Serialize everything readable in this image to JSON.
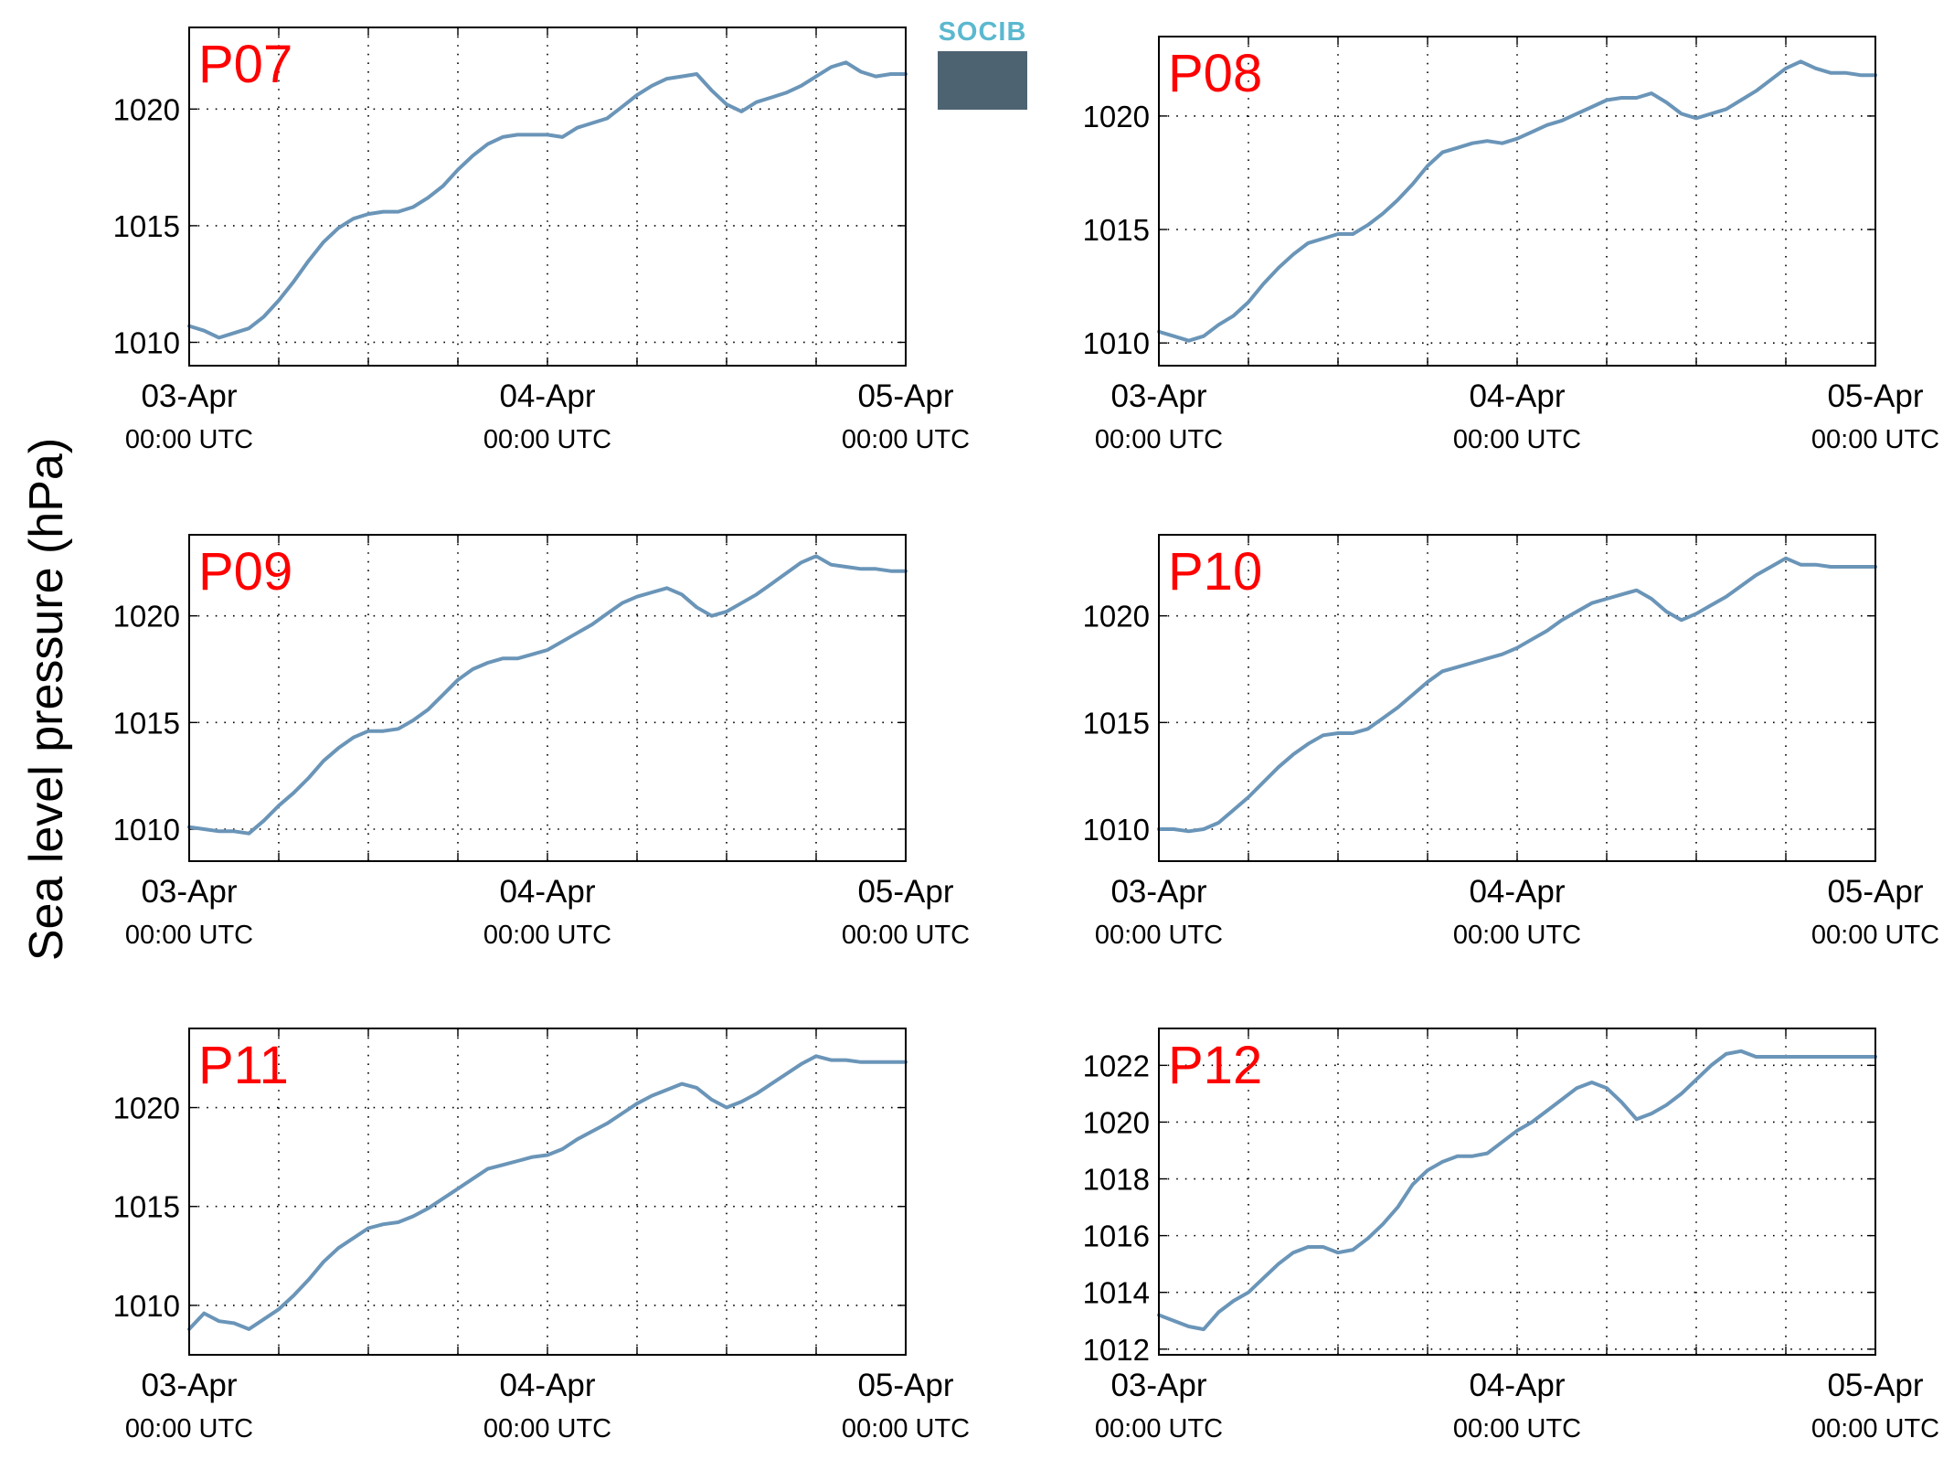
{
  "figure": {
    "ylabel": "Sea level pressure (hPa)",
    "logo_text": "SOCIB"
  },
  "chart_data": [
    {
      "type": "line",
      "title": "P07",
      "ylabel": "",
      "x_tick_dates": [
        "03-Apr",
        "04-Apr",
        "05-Apr"
      ],
      "x_tick_times": [
        "00:00 UTC",
        "00:00 UTC",
        "00:00 UTC"
      ],
      "xlim": [
        "2000-04-03T00:00",
        "2000-04-05T00:00"
      ],
      "yticks": [
        1010,
        1015,
        1020
      ],
      "ylim": [
        1009.0,
        1023.5
      ],
      "grid": true,
      "color": "#6a95b8",
      "series": [
        {
          "x": [
            "2000-04-03T00:00",
            "2000-04-03T01:00",
            "2000-04-03T02:00",
            "2000-04-03T03:00",
            "2000-04-03T04:00",
            "2000-04-03T05:00",
            "2000-04-03T06:00",
            "2000-04-03T07:00",
            "2000-04-03T08:00",
            "2000-04-03T09:00",
            "2000-04-03T10:00",
            "2000-04-03T11:00",
            "2000-04-03T12:00",
            "2000-04-03T13:00",
            "2000-04-03T14:00",
            "2000-04-03T15:00",
            "2000-04-03T16:00",
            "2000-04-03T17:00",
            "2000-04-03T18:00",
            "2000-04-03T19:00",
            "2000-04-03T20:00",
            "2000-04-03T21:00",
            "2000-04-03T22:00",
            "2000-04-03T23:00",
            "2000-04-04T00:00",
            "2000-04-04T01:00",
            "2000-04-04T02:00",
            "2000-04-04T03:00",
            "2000-04-04T04:00",
            "2000-04-04T05:00",
            "2000-04-04T06:00",
            "2000-04-04T07:00",
            "2000-04-04T08:00",
            "2000-04-04T09:00",
            "2000-04-04T10:00",
            "2000-04-04T11:00",
            "2000-04-04T12:00",
            "2000-04-04T13:00",
            "2000-04-04T14:00",
            "2000-04-04T15:00",
            "2000-04-04T16:00",
            "2000-04-04T17:00",
            "2000-04-04T18:00",
            "2000-04-04T19:00",
            "2000-04-04T20:00",
            "2000-04-04T21:00",
            "2000-04-04T22:00",
            "2000-04-04T23:00",
            "2000-04-05T00:00"
          ],
          "values": [
            1010.7,
            1010.5,
            1010.2,
            1010.4,
            1010.6,
            1011.1,
            1011.8,
            1012.6,
            1013.5,
            1014.3,
            1014.9,
            1015.3,
            1015.5,
            1015.6,
            1015.6,
            1015.8,
            1016.2,
            1016.7,
            1017.4,
            1018.0,
            1018.5,
            1018.8,
            1018.9,
            1018.9,
            1018.9,
            1018.8,
            1019.2,
            1019.4,
            1019.6,
            1020.1,
            1020.6,
            1021.0,
            1021.3,
            1021.4,
            1021.5,
            1020.8,
            1020.2,
            1019.9,
            1020.3,
            1020.5,
            1020.7,
            1021.0,
            1021.4,
            1021.8,
            1022.0,
            1021.6,
            1021.4,
            1021.5,
            1021.5
          ]
        }
      ]
    },
    {
      "type": "line",
      "title": "P08",
      "ylabel": "",
      "x_tick_dates": [
        "03-Apr",
        "04-Apr",
        "05-Apr"
      ],
      "x_tick_times": [
        "00:00 UTC",
        "00:00 UTC",
        "00:00 UTC"
      ],
      "xlim": [
        "2000-04-03T00:00",
        "2000-04-05T00:00"
      ],
      "yticks": [
        1010,
        1015,
        1020
      ],
      "ylim": [
        1009.0,
        1023.5
      ],
      "grid": true,
      "color": "#6a95b8",
      "series": [
        {
          "x": [
            "2000-04-03T00:00",
            "2000-04-03T01:00",
            "2000-04-03T02:00",
            "2000-04-03T03:00",
            "2000-04-03T04:00",
            "2000-04-03T05:00",
            "2000-04-03T06:00",
            "2000-04-03T07:00",
            "2000-04-03T08:00",
            "2000-04-03T09:00",
            "2000-04-03T10:00",
            "2000-04-03T11:00",
            "2000-04-03T12:00",
            "2000-04-03T13:00",
            "2000-04-03T14:00",
            "2000-04-03T15:00",
            "2000-04-03T16:00",
            "2000-04-03T17:00",
            "2000-04-03T18:00",
            "2000-04-03T19:00",
            "2000-04-03T20:00",
            "2000-04-03T21:00",
            "2000-04-03T22:00",
            "2000-04-03T23:00",
            "2000-04-04T00:00",
            "2000-04-04T01:00",
            "2000-04-04T02:00",
            "2000-04-04T03:00",
            "2000-04-04T04:00",
            "2000-04-04T05:00",
            "2000-04-04T06:00",
            "2000-04-04T07:00",
            "2000-04-04T08:00",
            "2000-04-04T09:00",
            "2000-04-04T10:00",
            "2000-04-04T11:00",
            "2000-04-04T12:00",
            "2000-04-04T13:00",
            "2000-04-04T14:00",
            "2000-04-04T15:00",
            "2000-04-04T16:00",
            "2000-04-04T17:00",
            "2000-04-04T18:00",
            "2000-04-04T19:00",
            "2000-04-04T20:00",
            "2000-04-04T21:00",
            "2000-04-04T22:00",
            "2000-04-04T23:00",
            "2000-04-05T00:00"
          ],
          "values": [
            1010.5,
            1010.3,
            1010.1,
            1010.3,
            1010.8,
            1011.2,
            1011.8,
            1012.6,
            1013.3,
            1013.9,
            1014.4,
            1014.6,
            1014.8,
            1014.8,
            1015.2,
            1015.7,
            1016.3,
            1017.0,
            1017.8,
            1018.4,
            1018.6,
            1018.8,
            1018.9,
            1018.8,
            1019.0,
            1019.3,
            1019.6,
            1019.8,
            1020.1,
            1020.4,
            1020.7,
            1020.8,
            1020.8,
            1021.0,
            1020.6,
            1020.1,
            1019.9,
            1020.1,
            1020.3,
            1020.7,
            1021.1,
            1021.6,
            1022.1,
            1022.4,
            1022.1,
            1021.9,
            1021.9,
            1021.8,
            1021.8
          ]
        }
      ]
    },
    {
      "type": "line",
      "title": "P09",
      "ylabel": "",
      "x_tick_dates": [
        "03-Apr",
        "04-Apr",
        "05-Apr"
      ],
      "x_tick_times": [
        "00:00 UTC",
        "00:00 UTC",
        "00:00 UTC"
      ],
      "xlim": [
        "2000-04-03T00:00",
        "2000-04-05T00:00"
      ],
      "yticks": [
        1010,
        1015,
        1020
      ],
      "ylim": [
        1008.5,
        1023.8
      ],
      "grid": true,
      "color": "#6a95b8",
      "series": [
        {
          "x": [
            "2000-04-03T00:00",
            "2000-04-03T01:00",
            "2000-04-03T02:00",
            "2000-04-03T03:00",
            "2000-04-03T04:00",
            "2000-04-03T05:00",
            "2000-04-03T06:00",
            "2000-04-03T07:00",
            "2000-04-03T08:00",
            "2000-04-03T09:00",
            "2000-04-03T10:00",
            "2000-04-03T11:00",
            "2000-04-03T12:00",
            "2000-04-03T13:00",
            "2000-04-03T14:00",
            "2000-04-03T15:00",
            "2000-04-03T16:00",
            "2000-04-03T17:00",
            "2000-04-03T18:00",
            "2000-04-03T19:00",
            "2000-04-03T20:00",
            "2000-04-03T21:00",
            "2000-04-03T22:00",
            "2000-04-03T23:00",
            "2000-04-04T00:00",
            "2000-04-04T01:00",
            "2000-04-04T02:00",
            "2000-04-04T03:00",
            "2000-04-04T04:00",
            "2000-04-04T05:00",
            "2000-04-04T06:00",
            "2000-04-04T07:00",
            "2000-04-04T08:00",
            "2000-04-04T09:00",
            "2000-04-04T10:00",
            "2000-04-04T11:00",
            "2000-04-04T12:00",
            "2000-04-04T13:00",
            "2000-04-04T14:00",
            "2000-04-04T15:00",
            "2000-04-04T16:00",
            "2000-04-04T17:00",
            "2000-04-04T18:00",
            "2000-04-04T19:00",
            "2000-04-04T20:00",
            "2000-04-04T21:00",
            "2000-04-04T22:00",
            "2000-04-04T23:00",
            "2000-04-05T00:00"
          ],
          "values": [
            1010.1,
            1010.0,
            1009.9,
            1009.9,
            1009.8,
            1010.4,
            1011.1,
            1011.7,
            1012.4,
            1013.2,
            1013.8,
            1014.3,
            1014.6,
            1014.6,
            1014.7,
            1015.1,
            1015.6,
            1016.3,
            1017.0,
            1017.5,
            1017.8,
            1018.0,
            1018.0,
            1018.2,
            1018.4,
            1018.8,
            1019.2,
            1019.6,
            1020.1,
            1020.6,
            1020.9,
            1021.1,
            1021.3,
            1021.0,
            1020.4,
            1020.0,
            1020.2,
            1020.6,
            1021.0,
            1021.5,
            1022.0,
            1022.5,
            1022.8,
            1022.4,
            1022.3,
            1022.2,
            1022.2,
            1022.1,
            1022.1
          ]
        }
      ]
    },
    {
      "type": "line",
      "title": "P10",
      "ylabel": "",
      "x_tick_dates": [
        "03-Apr",
        "04-Apr",
        "05-Apr"
      ],
      "x_tick_times": [
        "00:00 UTC",
        "00:00 UTC",
        "00:00 UTC"
      ],
      "xlim": [
        "2000-04-03T00:00",
        "2000-04-05T00:00"
      ],
      "yticks": [
        1010,
        1015,
        1020
      ],
      "ylim": [
        1008.5,
        1023.8
      ],
      "grid": true,
      "color": "#6a95b8",
      "series": [
        {
          "x": [
            "2000-04-03T00:00",
            "2000-04-03T01:00",
            "2000-04-03T02:00",
            "2000-04-03T03:00",
            "2000-04-03T04:00",
            "2000-04-03T05:00",
            "2000-04-03T06:00",
            "2000-04-03T07:00",
            "2000-04-03T08:00",
            "2000-04-03T09:00",
            "2000-04-03T10:00",
            "2000-04-03T11:00",
            "2000-04-03T12:00",
            "2000-04-03T13:00",
            "2000-04-03T14:00",
            "2000-04-03T15:00",
            "2000-04-03T16:00",
            "2000-04-03T17:00",
            "2000-04-03T18:00",
            "2000-04-03T19:00",
            "2000-04-03T20:00",
            "2000-04-03T21:00",
            "2000-04-03T22:00",
            "2000-04-03T23:00",
            "2000-04-04T00:00",
            "2000-04-04T01:00",
            "2000-04-04T02:00",
            "2000-04-04T03:00",
            "2000-04-04T04:00",
            "2000-04-04T05:00",
            "2000-04-04T06:00",
            "2000-04-04T07:00",
            "2000-04-04T08:00",
            "2000-04-04T09:00",
            "2000-04-04T10:00",
            "2000-04-04T11:00",
            "2000-04-04T12:00",
            "2000-04-04T13:00",
            "2000-04-04T14:00",
            "2000-04-04T15:00",
            "2000-04-04T16:00",
            "2000-04-04T17:00",
            "2000-04-04T18:00",
            "2000-04-04T19:00",
            "2000-04-04T20:00",
            "2000-04-04T21:00",
            "2000-04-04T22:00",
            "2000-04-04T23:00",
            "2000-04-05T00:00"
          ],
          "values": [
            1010.0,
            1010.0,
            1009.9,
            1010.0,
            1010.3,
            1010.9,
            1011.5,
            1012.2,
            1012.9,
            1013.5,
            1014.0,
            1014.4,
            1014.5,
            1014.5,
            1014.7,
            1015.2,
            1015.7,
            1016.3,
            1016.9,
            1017.4,
            1017.6,
            1017.8,
            1018.0,
            1018.2,
            1018.5,
            1018.9,
            1019.3,
            1019.8,
            1020.2,
            1020.6,
            1020.8,
            1021.0,
            1021.2,
            1020.8,
            1020.2,
            1019.8,
            1020.1,
            1020.5,
            1020.9,
            1021.4,
            1021.9,
            1022.3,
            1022.7,
            1022.4,
            1022.4,
            1022.3,
            1022.3,
            1022.3,
            1022.3
          ]
        }
      ]
    },
    {
      "type": "line",
      "title": "P11",
      "ylabel": "",
      "x_tick_dates": [
        "03-Apr",
        "04-Apr",
        "05-Apr"
      ],
      "x_tick_times": [
        "00:00 UTC",
        "00:00 UTC",
        "00:00 UTC"
      ],
      "xlim": [
        "2000-04-03T00:00",
        "2000-04-05T00:00"
      ],
      "yticks": [
        1010,
        1015,
        1020
      ],
      "ylim": [
        1007.5,
        1024.0
      ],
      "grid": true,
      "color": "#6a95b8",
      "series": [
        {
          "x": [
            "2000-04-03T00:00",
            "2000-04-03T01:00",
            "2000-04-03T02:00",
            "2000-04-03T03:00",
            "2000-04-03T04:00",
            "2000-04-03T05:00",
            "2000-04-03T06:00",
            "2000-04-03T07:00",
            "2000-04-03T08:00",
            "2000-04-03T09:00",
            "2000-04-03T10:00",
            "2000-04-03T11:00",
            "2000-04-03T12:00",
            "2000-04-03T13:00",
            "2000-04-03T14:00",
            "2000-04-03T15:00",
            "2000-04-03T16:00",
            "2000-04-03T17:00",
            "2000-04-03T18:00",
            "2000-04-03T19:00",
            "2000-04-03T20:00",
            "2000-04-03T21:00",
            "2000-04-03T22:00",
            "2000-04-03T23:00",
            "2000-04-04T00:00",
            "2000-04-04T01:00",
            "2000-04-04T02:00",
            "2000-04-04T03:00",
            "2000-04-04T04:00",
            "2000-04-04T05:00",
            "2000-04-04T06:00",
            "2000-04-04T07:00",
            "2000-04-04T08:00",
            "2000-04-04T09:00",
            "2000-04-04T10:00",
            "2000-04-04T11:00",
            "2000-04-04T12:00",
            "2000-04-04T13:00",
            "2000-04-04T14:00",
            "2000-04-04T15:00",
            "2000-04-04T16:00",
            "2000-04-04T17:00",
            "2000-04-04T18:00",
            "2000-04-04T19:00",
            "2000-04-04T20:00",
            "2000-04-04T21:00",
            "2000-04-04T22:00",
            "2000-04-04T23:00",
            "2000-04-05T00:00"
          ],
          "values": [
            1008.8,
            1009.6,
            1009.2,
            1009.1,
            1008.8,
            1009.3,
            1009.8,
            1010.5,
            1011.3,
            1012.2,
            1012.9,
            1013.4,
            1013.9,
            1014.1,
            1014.2,
            1014.5,
            1014.9,
            1015.4,
            1015.9,
            1016.4,
            1016.9,
            1017.1,
            1017.3,
            1017.5,
            1017.6,
            1017.9,
            1018.4,
            1018.8,
            1019.2,
            1019.7,
            1020.2,
            1020.6,
            1020.9,
            1021.2,
            1021.0,
            1020.4,
            1020.0,
            1020.3,
            1020.7,
            1021.2,
            1021.7,
            1022.2,
            1022.6,
            1022.4,
            1022.4,
            1022.3,
            1022.3,
            1022.3,
            1022.3
          ]
        }
      ]
    },
    {
      "type": "line",
      "title": "P12",
      "ylabel": "",
      "x_tick_dates": [
        "03-Apr",
        "04-Apr",
        "05-Apr"
      ],
      "x_tick_times": [
        "00:00 UTC",
        "00:00 UTC",
        "00:00 UTC"
      ],
      "xlim": [
        "2000-04-03T00:00",
        "2000-04-05T00:00"
      ],
      "yticks": [
        1012,
        1014,
        1016,
        1018,
        1020,
        1022
      ],
      "ylim": [
        1011.8,
        1023.3
      ],
      "grid": true,
      "color": "#6a95b8",
      "series": [
        {
          "x": [
            "2000-04-03T00:00",
            "2000-04-03T01:00",
            "2000-04-03T02:00",
            "2000-04-03T03:00",
            "2000-04-03T04:00",
            "2000-04-03T05:00",
            "2000-04-03T06:00",
            "2000-04-03T07:00",
            "2000-04-03T08:00",
            "2000-04-03T09:00",
            "2000-04-03T10:00",
            "2000-04-03T11:00",
            "2000-04-03T12:00",
            "2000-04-03T13:00",
            "2000-04-03T14:00",
            "2000-04-03T15:00",
            "2000-04-03T16:00",
            "2000-04-03T17:00",
            "2000-04-03T18:00",
            "2000-04-03T19:00",
            "2000-04-03T20:00",
            "2000-04-03T21:00",
            "2000-04-03T22:00",
            "2000-04-03T23:00",
            "2000-04-04T00:00",
            "2000-04-04T01:00",
            "2000-04-04T02:00",
            "2000-04-04T03:00",
            "2000-04-04T04:00",
            "2000-04-04T05:00",
            "2000-04-04T06:00",
            "2000-04-04T07:00",
            "2000-04-04T08:00",
            "2000-04-04T09:00",
            "2000-04-04T10:00",
            "2000-04-04T11:00",
            "2000-04-04T12:00",
            "2000-04-04T13:00",
            "2000-04-04T14:00",
            "2000-04-04T15:00",
            "2000-04-04T16:00",
            "2000-04-04T17:00",
            "2000-04-04T18:00",
            "2000-04-04T19:00",
            "2000-04-04T20:00",
            "2000-04-04T21:00",
            "2000-04-04T22:00",
            "2000-04-04T23:00",
            "2000-04-05T00:00"
          ],
          "values": [
            1013.2,
            1013.0,
            1012.8,
            1012.7,
            1013.3,
            1013.7,
            1014.0,
            1014.5,
            1015.0,
            1015.4,
            1015.6,
            1015.6,
            1015.4,
            1015.5,
            1015.9,
            1016.4,
            1017.0,
            1017.8,
            1018.3,
            1018.6,
            1018.8,
            1018.8,
            1018.9,
            1019.3,
            1019.7,
            1020.0,
            1020.4,
            1020.8,
            1021.2,
            1021.4,
            1021.2,
            1020.7,
            1020.1,
            1020.3,
            1020.6,
            1021.0,
            1021.5,
            1022.0,
            1022.4,
            1022.5,
            1022.3,
            1022.3,
            1022.3,
            1022.3,
            1022.3,
            1022.3,
            1022.3,
            1022.3,
            1022.3
          ]
        }
      ]
    }
  ]
}
